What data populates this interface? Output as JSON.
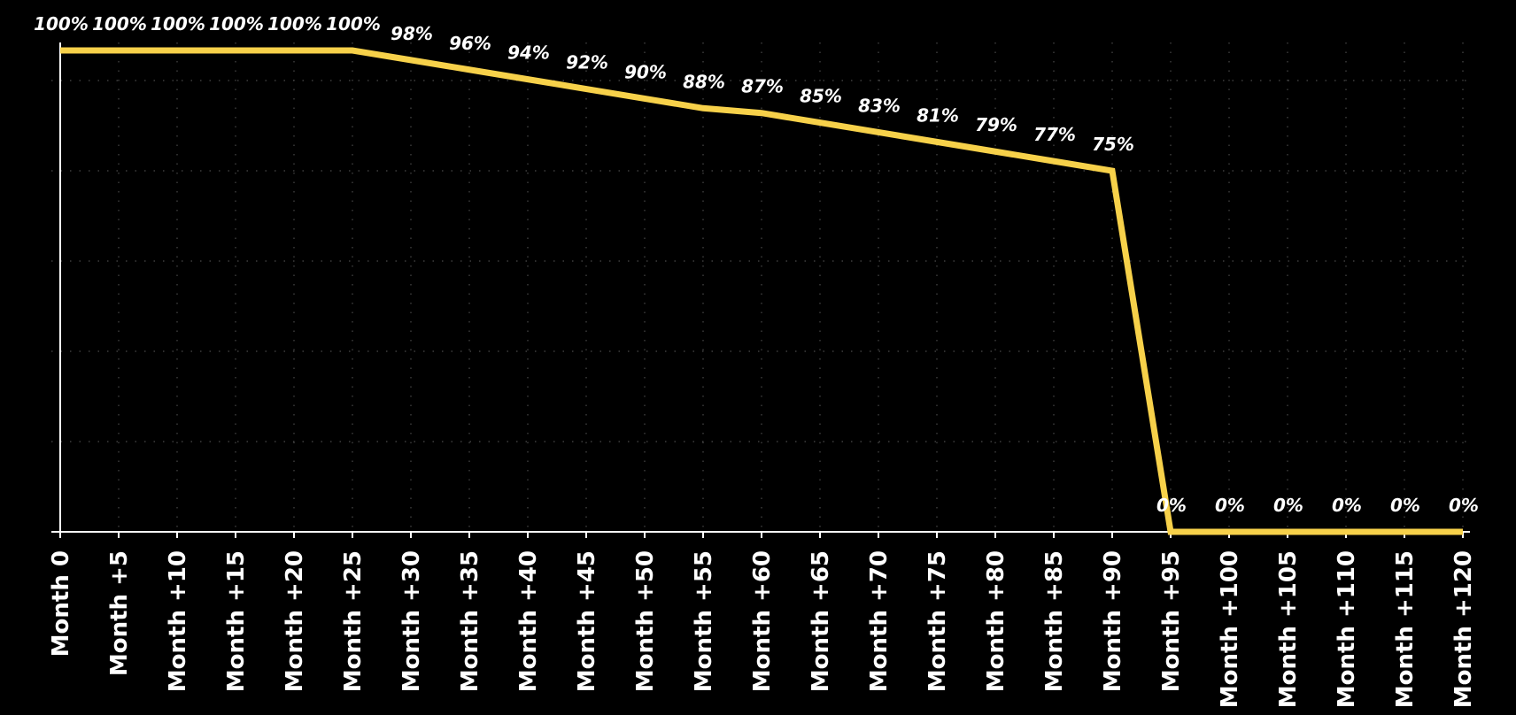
{
  "chart_data": {
    "type": "line",
    "title": "",
    "xlabel": "",
    "ylabel": "",
    "x": [
      "Month 0",
      "Month +5",
      "Month +10",
      "Month +15",
      "Month +20",
      "Month +25",
      "Month +30",
      "Month +35",
      "Month +40",
      "Month +45",
      "Month +50",
      "Month +55",
      "Month +60",
      "Month +65",
      "Month +70",
      "Month +75",
      "Month +80",
      "Month +85",
      "Month +90",
      "Month +95",
      "Month +100",
      "Month +105",
      "Month +110",
      "Month +115",
      "Month +120"
    ],
    "series": [
      {
        "values": [
          100,
          100,
          100,
          100,
          100,
          100,
          98,
          96,
          94,
          92,
          90,
          88,
          87,
          85,
          83,
          81,
          79,
          77,
          75,
          0,
          0,
          0,
          0,
          0,
          0
        ],
        "data_labels": [
          "100%",
          "100%",
          "100%",
          "100%",
          "100%",
          "100%",
          "98%",
          "96%",
          "94%",
          "92%",
          "90%",
          "88%",
          "87%",
          "85%",
          "83%",
          "81%",
          "79%",
          "77%",
          "75%",
          "0%",
          "0%",
          "0%",
          "0%",
          "0%",
          "0%"
        ]
      }
    ],
    "ylim": [
      0,
      100
    ],
    "grid": true,
    "legend": "none",
    "colors": {
      "background": "#000000",
      "line": "#f7d14a",
      "axis": "#ffffff",
      "grid": "#4a4a4a",
      "text": "#ffffff"
    }
  }
}
